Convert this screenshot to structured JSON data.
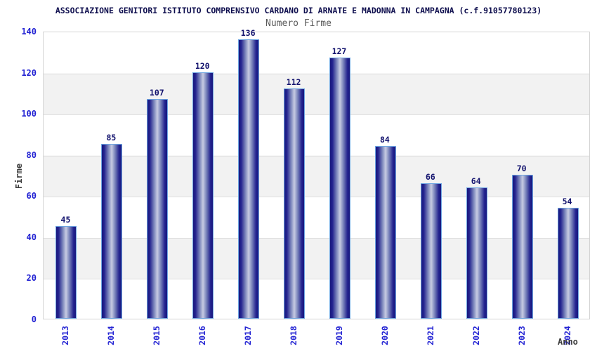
{
  "header": {
    "title": "ASSOCIAZIONE GENITORI ISTITUTO COMPRENSIVO CARDANO DI ARNATE E MADONNA IN CAMPAGNA (c.f.91057780123)",
    "subtitle": "Numero Firme"
  },
  "chart_data": {
    "type": "bar",
    "title": "Numero Firme",
    "categories": [
      "2013",
      "2014",
      "2015",
      "2016",
      "2017",
      "2018",
      "2019",
      "2020",
      "2021",
      "2022",
      "2023",
      "2024"
    ],
    "values": [
      45,
      85,
      107,
      120,
      136,
      112,
      127,
      84,
      66,
      64,
      70,
      54
    ],
    "xlabel": "Anno",
    "ylabel": "Firme",
    "ylim": [
      0,
      140
    ],
    "ytick_step": 20,
    "yticks": [
      0,
      20,
      40,
      60,
      80,
      100,
      120,
      140
    ],
    "grid": true,
    "legend": "none",
    "value_labels_shown": true,
    "colors": {
      "bar_edge": "#6fa6e2",
      "bar_dark": "#18187e",
      "bar_light": "#c7cce2",
      "tick_label": "#2323d3",
      "value_label": "#13136e",
      "title": "#0d0d4d",
      "subtitle": "#5a5a5a",
      "axis_title": "#3c3c3c",
      "band_alt": "#f2f2f2",
      "gridline": "#e0e0e0",
      "plot_border": "#d4d4d4",
      "background": "#ffffff"
    }
  }
}
